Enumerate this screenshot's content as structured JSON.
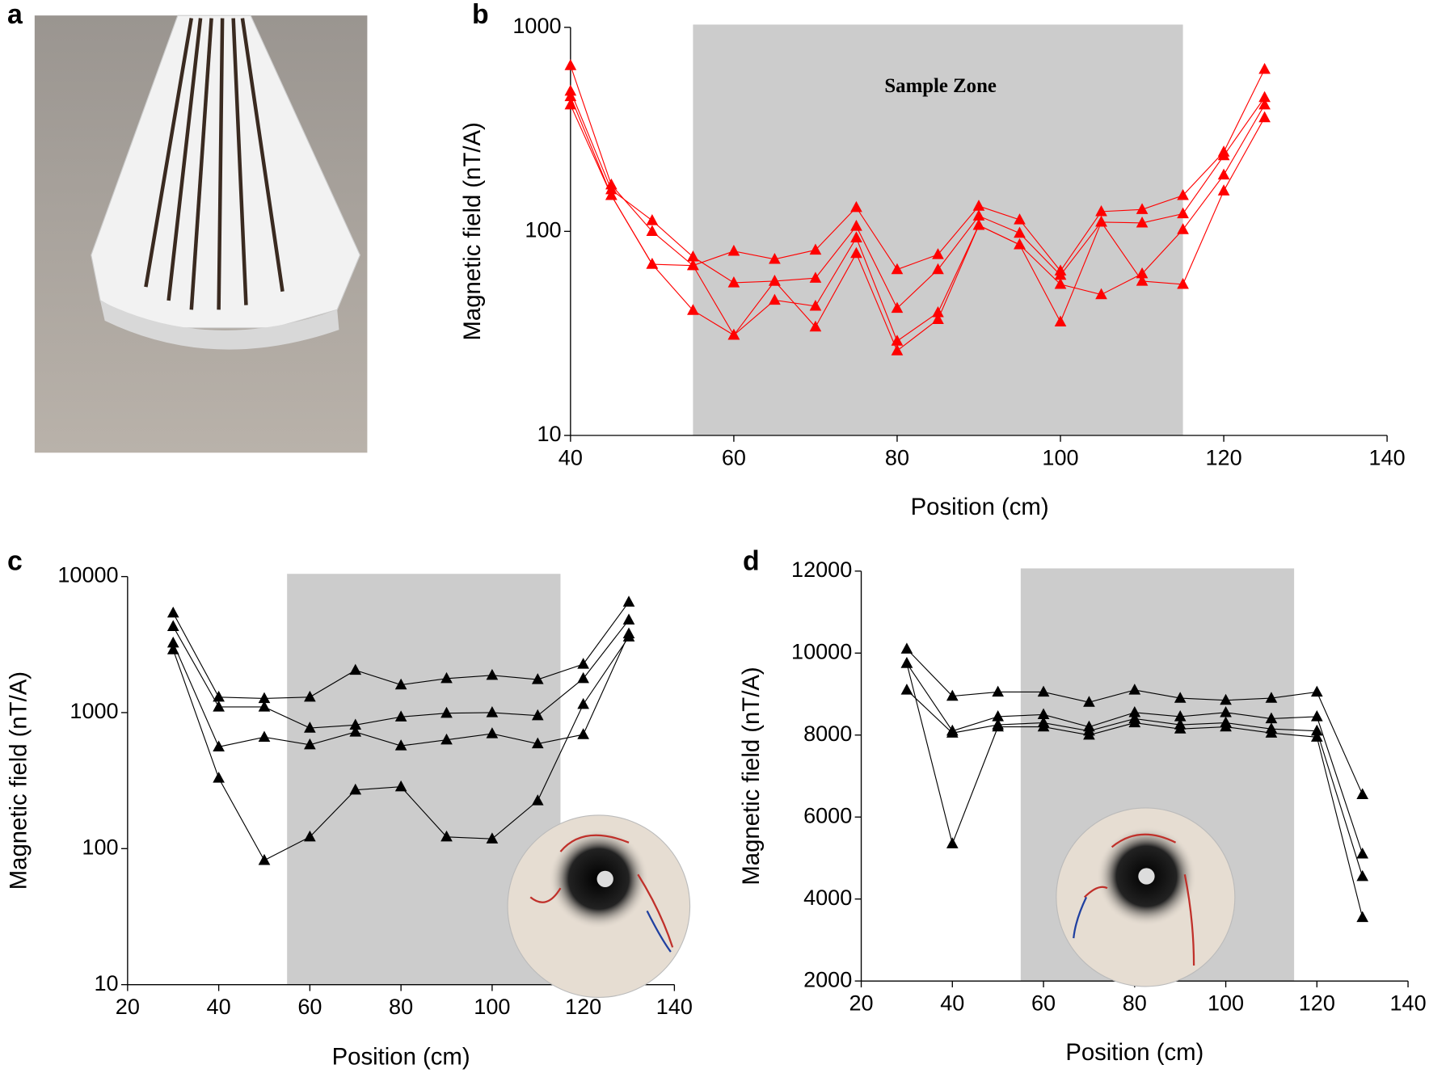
{
  "photo_panel": {
    "label": "a"
  },
  "chart_data": [
    {
      "type": "line",
      "panel_label": "b",
      "log_y": true,
      "annotation": "Sample Zone",
      "x_label": "Position (cm)",
      "y_label": "Magnetic field (nT/A)",
      "x": [
        40,
        45,
        50,
        55,
        60,
        65,
        70,
        75,
        80,
        85,
        90,
        95,
        100,
        105,
        110,
        115,
        120,
        125
      ],
      "series": [
        {
          "color": "#ff0000",
          "values": [
            650,
            169,
            100,
            68,
            80,
            73,
            81,
            131,
            65,
            77,
            133,
            114,
            64,
            125,
            128,
            150,
            245,
            623
          ]
        },
        {
          "color": "#ff0000",
          "values": [
            487,
            160,
            113,
            75,
            56,
            57,
            59,
            106,
            42,
            65,
            119,
            98,
            61,
            111,
            110,
            122,
            235,
            453
          ]
        },
        {
          "color": "#ff0000",
          "values": [
            458,
            150,
            69,
            68,
            31,
            46,
            43,
            93,
            29,
            40,
            107,
            86,
            55,
            49,
            62,
            102,
            189,
            417
          ]
        },
        {
          "color": "#ff0000",
          "values": [
            417,
            150,
            69,
            41,
            31,
            57,
            34,
            78,
            26,
            37,
            107,
            86,
            36,
            111,
            57,
            55,
            158,
            361
          ]
        }
      ],
      "shaded_region": [
        55,
        115
      ],
      "xlim": [
        40,
        140
      ],
      "xticks": [
        40,
        60,
        80,
        100,
        120,
        140
      ],
      "ylim": [
        10,
        1000
      ],
      "yticks": [
        10,
        100,
        1000
      ]
    },
    {
      "type": "line",
      "panel_label": "c",
      "log_y": true,
      "x_label": "Position (cm)",
      "y_label": "Magnetic field (nT/A)",
      "x": [
        30,
        40,
        50,
        60,
        70,
        80,
        90,
        100,
        110,
        120,
        130
      ],
      "series": [
        {
          "color": "#000000",
          "values": [
            5400,
            1300,
            1270,
            1300,
            2050,
            1600,
            1780,
            1880,
            1750,
            2270,
            6500
          ]
        },
        {
          "color": "#000000",
          "values": [
            4300,
            1100,
            1100,
            770,
            810,
            930,
            990,
            1000,
            950,
            1780,
            4800
          ]
        },
        {
          "color": "#000000",
          "values": [
            3250,
            560,
            660,
            580,
            720,
            570,
            630,
            700,
            590,
            690,
            3800
          ]
        },
        {
          "color": "#000000",
          "values": [
            2900,
            330,
            82,
            122,
            270,
            285,
            122,
            118,
            225,
            1150,
            3600
          ]
        }
      ],
      "shaded_region": [
        55,
        115
      ],
      "xlim": [
        20,
        140
      ],
      "xticks": [
        20,
        40,
        60,
        80,
        100,
        120,
        140
      ],
      "ylim": [
        10,
        10000
      ],
      "yticks": [
        10,
        100,
        1000,
        10000
      ]
    },
    {
      "type": "line",
      "panel_label": "d",
      "log_y": false,
      "x_label": "Position (cm)",
      "y_label": "Magnetic field (nT/A)",
      "x": [
        30,
        40,
        50,
        60,
        70,
        80,
        90,
        100,
        110,
        120,
        130
      ],
      "series": [
        {
          "color": "#000000",
          "values": [
            10100,
            8950,
            9050,
            9050,
            8800,
            9100,
            8900,
            8850,
            8900,
            9050,
            6550
          ]
        },
        {
          "color": "#000000",
          "values": [
            9750,
            8100,
            8450,
            8500,
            8200,
            8550,
            8450,
            8550,
            8400,
            8450,
            5100
          ]
        },
        {
          "color": "#000000",
          "values": [
            9100,
            8050,
            8250,
            8300,
            8100,
            8400,
            8250,
            8300,
            8150,
            8100,
            4550
          ]
        },
        {
          "color": "#000000",
          "values": [
            9750,
            5350,
            8200,
            8200,
            8000,
            8300,
            8150,
            8200,
            8050,
            7950,
            3550
          ]
        }
      ],
      "shaded_region": [
        55,
        115
      ],
      "xlim": [
        20,
        140
      ],
      "xticks": [
        20,
        40,
        60,
        80,
        100,
        120,
        140
      ],
      "ylim": [
        2000,
        12000
      ],
      "yticks": [
        2000,
        4000,
        6000,
        8000,
        10000,
        12000
      ]
    }
  ]
}
